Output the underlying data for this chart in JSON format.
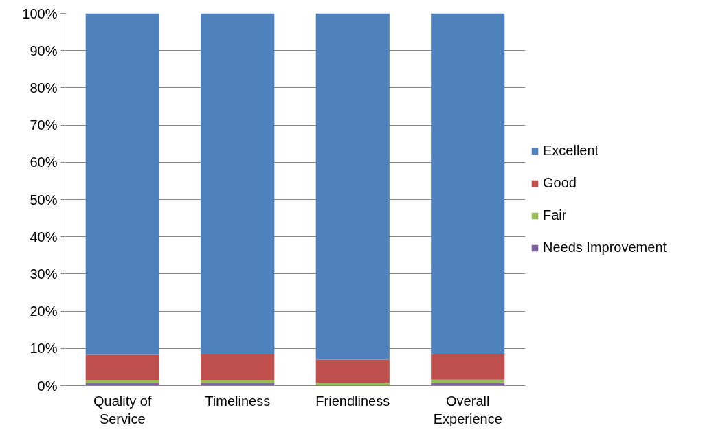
{
  "chart_data": {
    "type": "bar",
    "stacked": true,
    "categories": [
      "Quality of Service",
      "Timeliness",
      "Friendliness",
      "Overall Experience"
    ],
    "series": [
      {
        "name": "Needs Improvement",
        "color": "#8064a2",
        "values": [
          0.7,
          0.7,
          0,
          0.7
        ]
      },
      {
        "name": "Fair",
        "color": "#9bbb59",
        "values": [
          0.7,
          0.7,
          0.8,
          0.9
        ]
      },
      {
        "name": "Good",
        "color": "#c0504d",
        "values": [
          6.9,
          7.0,
          6.2,
          6.9
        ]
      },
      {
        "name": "Excellent",
        "color": "#4f81bd",
        "values": [
          91.7,
          91.6,
          93.0,
          91.5
        ]
      }
    ],
    "ylim": [
      0,
      100
    ],
    "yticks": [
      {
        "value": 0,
        "label": "0%"
      },
      {
        "value": 10,
        "label": "10%"
      },
      {
        "value": 20,
        "label": "20%"
      },
      {
        "value": 30,
        "label": "30%"
      },
      {
        "value": 40,
        "label": "40%"
      },
      {
        "value": 50,
        "label": "50%"
      },
      {
        "value": 60,
        "label": "60%"
      },
      {
        "value": 70,
        "label": "70%"
      },
      {
        "value": 80,
        "label": "80%"
      },
      {
        "value": 90,
        "label": "90%"
      },
      {
        "value": 100,
        "label": "100%"
      }
    ],
    "grid": "y",
    "legend": "right"
  }
}
